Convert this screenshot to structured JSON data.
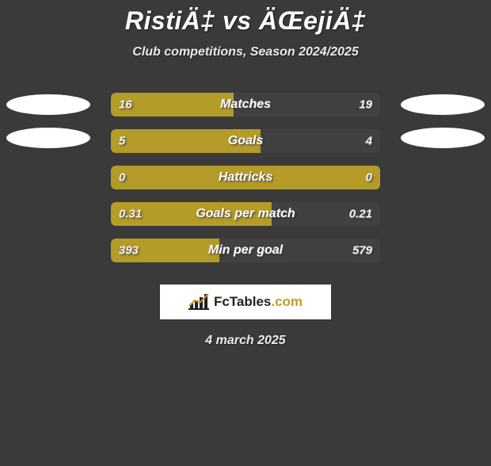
{
  "title": "RistiÄ‡ vs ÄŒejiÄ‡",
  "subtitle": "Club competitions, Season 2024/2025",
  "date": "4 march 2025",
  "colors": {
    "background": "#3a3a3a",
    "bar_left": "#b59b28",
    "bar_right": "#414141",
    "bar_neutral": "#b59b28",
    "ellipse": "#ffffff",
    "text": "#ffffff"
  },
  "logo": {
    "text_main": "FcTables",
    "text_suffix": ".com"
  },
  "rows": [
    {
      "label": "Matches",
      "left_value": "16",
      "right_value": "19",
      "left_pct": 45.7,
      "right_pct": 54.3,
      "show_left_ellipse": true,
      "show_right_ellipse": true
    },
    {
      "label": "Goals",
      "left_value": "5",
      "right_value": "4",
      "left_pct": 55.6,
      "right_pct": 44.4,
      "show_left_ellipse": true,
      "show_right_ellipse": true
    },
    {
      "label": "Hattricks",
      "left_value": "0",
      "right_value": "0",
      "left_pct": 100,
      "right_pct": 0,
      "show_left_ellipse": false,
      "show_right_ellipse": false
    },
    {
      "label": "Goals per match",
      "left_value": "0.31",
      "right_value": "0.21",
      "left_pct": 59.6,
      "right_pct": 40.4,
      "show_left_ellipse": false,
      "show_right_ellipse": false
    },
    {
      "label": "Min per goal",
      "left_value": "393",
      "right_value": "579",
      "left_pct": 40.4,
      "right_pct": 59.6,
      "show_left_ellipse": false,
      "show_right_ellipse": false
    }
  ]
}
